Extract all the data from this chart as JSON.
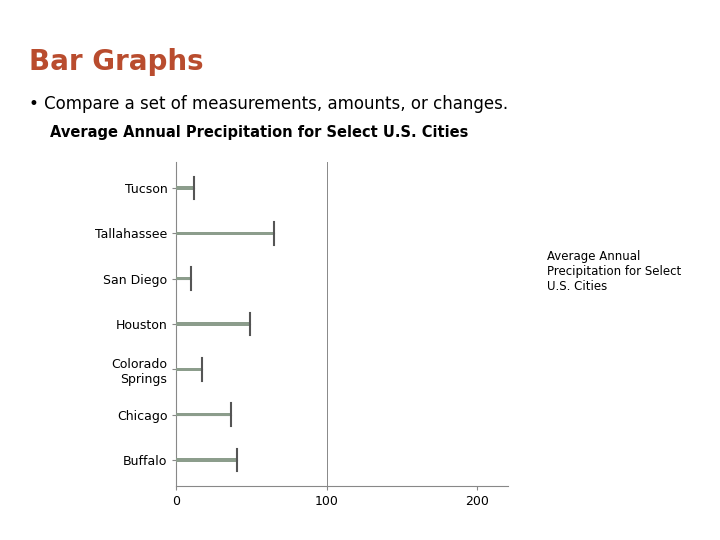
{
  "title": "Average Annual Precipitation for Select U.S. Cities",
  "header_title": "Bar Graphs",
  "bullet_text": "Compare a set of measurements, amounts, or changes.",
  "categories": [
    "Tucson",
    "Tallahassee",
    "San Diego",
    "Houston",
    "Colorado\nSprings",
    "Chicago",
    "Buffalo"
  ],
  "values": [
    12,
    65,
    10,
    49,
    17,
    36,
    40
  ],
  "bar_color": "#8c9d8c",
  "bar_height": 0.08,
  "xlim": [
    0,
    220
  ],
  "xticks": [
    0,
    100,
    200
  ],
  "legend_label": "Average Annual\nPrecipitation for Select\nU.S. Cities",
  "header_color": "#b94c2e",
  "header_bg_color": "#8a9d8f",
  "bg_color": "#ffffff",
  "title_fontsize": 10.5,
  "header_fontsize": 20,
  "bullet_fontsize": 12,
  "axis_line_color": "#888888",
  "tick_label_fontsize": 9,
  "legend_fontsize": 8.5
}
